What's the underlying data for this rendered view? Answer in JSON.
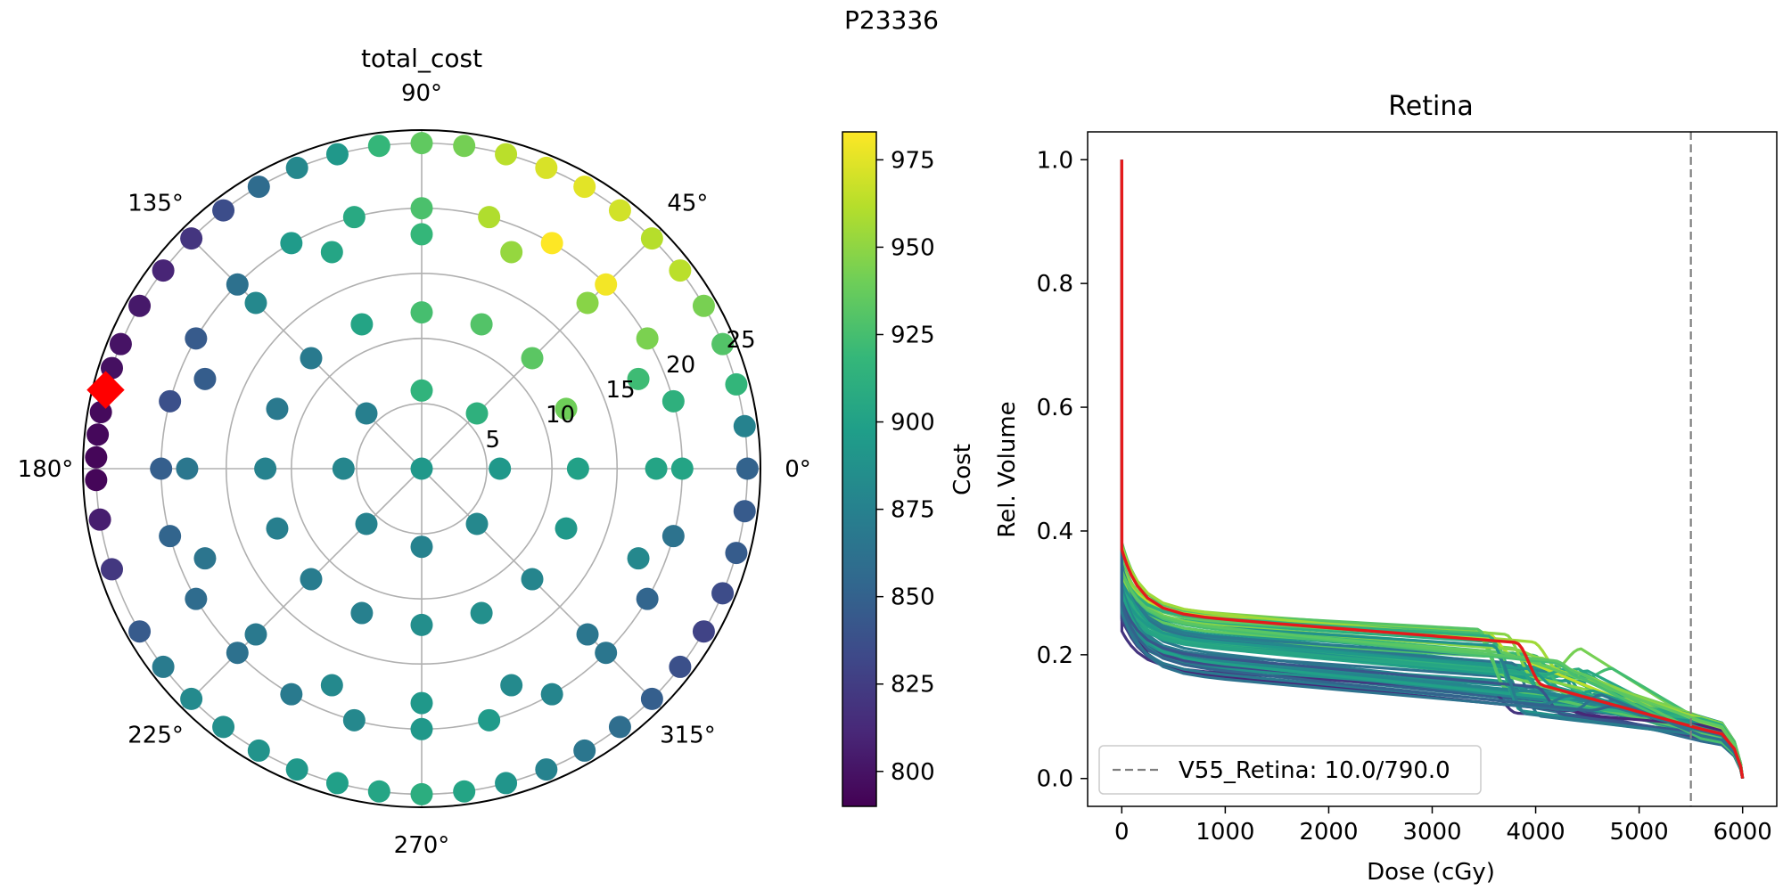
{
  "figure_title": "P23336",
  "colors": {
    "grid": "#b0b0b0",
    "best_marker": "#ff0000",
    "best_curve": "#e41a1c",
    "threshold_line": "#7f7f7f",
    "viridis": [
      "#440154",
      "#482878",
      "#3e4989",
      "#31688e",
      "#26828e",
      "#1f9e89",
      "#35b779",
      "#6ece58",
      "#b5de2b",
      "#fde725"
    ]
  },
  "chart_data": [
    {
      "type": "scatter",
      "subtype": "polar",
      "title": "total_cost",
      "theta_ticks": [
        "0°",
        "45°",
        "90°",
        "135°",
        "180°",
        "225°",
        "270°",
        "315°"
      ],
      "r_ticks": [
        "5",
        "10",
        "15",
        "20",
        "25"
      ],
      "r_tick_values": [
        5,
        10,
        15,
        20,
        25
      ],
      "rlim": [
        0,
        26
      ],
      "grid": true,
      "color_scale": {
        "min": 790,
        "max": 983
      },
      "best": {
        "theta": 166,
        "r": 25
      },
      "rings": [
        {
          "r": 0,
          "points": [
            [
              0,
              893
            ]
          ]
        },
        {
          "r": 6,
          "points": [
            [
              0,
              893
            ],
            [
              45,
              913
            ],
            [
              90,
              915
            ],
            [
              135,
              873
            ],
            [
              180,
              879
            ],
            [
              225,
              876
            ],
            [
              270,
              876
            ],
            [
              315,
              880
            ]
          ]
        },
        {
          "r": 12,
          "points": [
            [
              0,
              900
            ],
            [
              22.5,
              940
            ],
            [
              45,
              933
            ],
            [
              67.5,
              930
            ],
            [
              90,
              925
            ],
            [
              112.5,
              902
            ],
            [
              135,
              869
            ],
            [
              157.5,
              868
            ],
            [
              180,
              876
            ],
            [
              202.5,
              873
            ],
            [
              225,
              871
            ],
            [
              247.5,
              874
            ],
            [
              270,
              885
            ],
            [
              292.5,
              886
            ],
            [
              315,
              878
            ],
            [
              337.5,
              893
            ]
          ]
        },
        {
          "r": 18,
          "points": [
            [
              0,
              902
            ],
            [
              22.5,
              922
            ],
            [
              45,
              948
            ],
            [
              67.5,
              952
            ],
            [
              90,
              918
            ],
            [
              112.5,
              903
            ],
            [
              135,
              880
            ],
            [
              157.5,
              847
            ],
            [
              180,
              867
            ],
            [
              202.5,
              865
            ],
            [
              225,
              868
            ],
            [
              247.5,
              881
            ],
            [
              270,
              893
            ],
            [
              292.5,
              882
            ],
            [
              315,
              866
            ],
            [
              337.5,
              880
            ]
          ]
        },
        {
          "r": 20,
          "points": [
            [
              0,
              902
            ],
            [
              15,
              913
            ],
            [
              30,
              944
            ],
            [
              45,
              980
            ],
            [
              60,
              983
            ],
            [
              75,
              960
            ],
            [
              90,
              927
            ],
            [
              105,
              907
            ],
            [
              120,
              895
            ],
            [
              135,
              862
            ],
            [
              150,
              845
            ],
            [
              165,
              838
            ],
            [
              180,
              848
            ],
            [
              195,
              852
            ],
            [
              210,
              858
            ],
            [
              225,
              862
            ],
            [
              240,
              869
            ],
            [
              255,
              880
            ],
            [
              270,
              893
            ],
            [
              285,
              895
            ],
            [
              300,
              878
            ],
            [
              315,
              866
            ],
            [
              330,
              853
            ],
            [
              345,
              863
            ]
          ]
        },
        {
          "r": 25,
          "points": [
            [
              0,
              851
            ],
            [
              7.5,
              876
            ],
            [
              15,
              917
            ],
            [
              22.5,
              930
            ],
            [
              30,
              943
            ],
            [
              37.5,
              963
            ],
            [
              45,
              962
            ],
            [
              52.5,
              970
            ],
            [
              60,
              975
            ],
            [
              67.5,
              972
            ],
            [
              75,
              963
            ],
            [
              82.5,
              942
            ],
            [
              90,
              935
            ],
            [
              97.5,
              918
            ],
            [
              105,
              893
            ],
            [
              112.5,
              880
            ],
            [
              120,
              858
            ],
            [
              127.5,
              836
            ],
            [
              135,
              820
            ],
            [
              142.5,
              810
            ],
            [
              150,
              803
            ],
            [
              157.5,
              800
            ],
            [
              162,
              798
            ],
            [
              166,
              796
            ],
            [
              170,
              795
            ],
            [
              174,
              794
            ],
            [
              178,
              793
            ],
            [
              182,
              793
            ],
            [
              189,
              806
            ],
            [
              198,
              822
            ],
            [
              210,
              845
            ],
            [
              217.5,
              870
            ],
            [
              225,
              882
            ],
            [
              232.5,
              886
            ],
            [
              240,
              889
            ],
            [
              247.5,
              893
            ],
            [
              255,
              899
            ],
            [
              262.5,
              903
            ],
            [
              270,
              910
            ],
            [
              277.5,
              902
            ],
            [
              285,
              890
            ],
            [
              292.5,
              876
            ],
            [
              300,
              866
            ],
            [
              307.5,
              859
            ],
            [
              315,
              848
            ],
            [
              322.5,
              838
            ],
            [
              330,
              829
            ],
            [
              337.5,
              835
            ],
            [
              345,
              846
            ],
            [
              352.5,
              845
            ]
          ]
        }
      ]
    },
    {
      "type": "colorbar",
      "label": "Cost",
      "min": 790,
      "max": 983,
      "ticks": [
        800,
        825,
        850,
        875,
        900,
        925,
        950,
        975
      ]
    },
    {
      "type": "line",
      "title": "Retina",
      "xlabel": "Dose (cGy)",
      "ylabel": "Rel. Volume",
      "xlim": [
        -330,
        6330
      ],
      "ylim": [
        -0.045,
        1.045
      ],
      "xticks": [
        0,
        1000,
        2000,
        3000,
        4000,
        5000,
        6000
      ],
      "yticks": [
        0.0,
        0.2,
        0.4,
        0.6,
        0.8,
        1.0
      ],
      "xtick_labels": [
        "0",
        "1000",
        "2000",
        "3000",
        "4000",
        "5000",
        "6000"
      ],
      "ytick_labels": [
        "0.0",
        "0.2",
        "0.4",
        "0.6",
        "0.8",
        "1.0"
      ],
      "threshold": {
        "x": 5500,
        "label": "V55_Retina: 10.0/790.0"
      },
      "legend_position": "lower-left",
      "series_count": 60,
      "best_series": {
        "a": 0.37,
        "b": 0.27,
        "c": 0.22,
        "d": 0.15,
        "e": 0.08,
        "knee": 3800,
        "cost": 796
      }
    }
  ]
}
